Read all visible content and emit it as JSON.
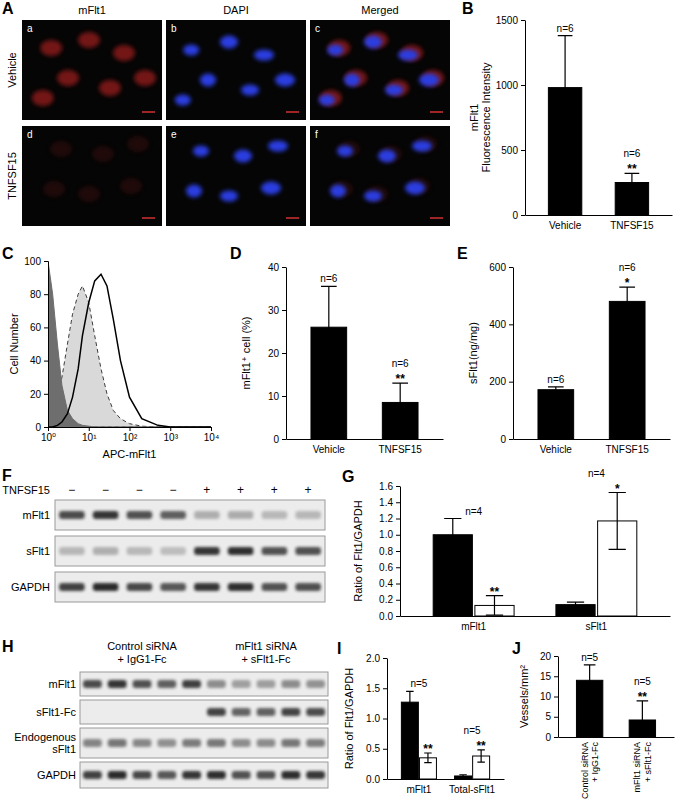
{
  "images": {
    "panel": "A",
    "columns": [
      "mFlt1",
      "DAPI",
      "Merged"
    ],
    "rows": [
      "Vehicle",
      "TNFSF15"
    ],
    "tiles": [
      "a",
      "b",
      "c",
      "d",
      "e",
      "f"
    ]
  },
  "blots": [
    {
      "panel": "F",
      "treatment": "TNFSF15",
      "lanes": [
        "−",
        "−",
        "−",
        "−",
        "+",
        "+",
        "+",
        "+"
      ],
      "rows": [
        "mFlt1",
        "sFlt1",
        "GAPDH"
      ]
    },
    {
      "panel": "H",
      "groups": [
        "Control siRNA\n+ IgG1-Fc",
        "mFlt1 siRNA\n+ sFlt1-Fc"
      ],
      "rows": [
        "mFlt1",
        "sFlt1-Fc",
        "Endogenous\nsFlt1",
        "GAPDH"
      ]
    }
  ],
  "chart_data": [
    {
      "panel": "B",
      "type": "bar",
      "y_label": "mFlt1\nFluorescence Intensity",
      "categories": [
        "Vehicle",
        "TNFSF15"
      ],
      "values": [
        980,
        250
      ],
      "errors": [
        400,
        70
      ],
      "color": "#000000",
      "ylim": [
        0,
        1500
      ],
      "yticks": [
        0,
        500,
        1000,
        1500
      ],
      "group_labels": [
        "n=6",
        "n=6"
      ],
      "sig_labels": [
        null,
        "**"
      ]
    },
    {
      "panel": "C",
      "type": "line",
      "log": "x",
      "x_label": "APC-mFlt1",
      "y_label": "Cell Number",
      "x": [
        1,
        1.3,
        1.7,
        2.2,
        3,
        4,
        5.5,
        7,
        10,
        14,
        20,
        28,
        40,
        60,
        100,
        200,
        500,
        1000,
        10000
      ],
      "xlim": [
        1,
        10000
      ],
      "xticks": [
        {
          "value": 1,
          "label": "10⁰"
        },
        {
          "value": 10,
          "label": "10¹"
        },
        {
          "value": 100,
          "label": "10²"
        },
        {
          "value": 1000,
          "label": "10³"
        },
        {
          "value": 10000,
          "label": "10⁴"
        }
      ],
      "ylim": [
        0,
        100
      ],
      "yticks": [
        0,
        20,
        40,
        60,
        80,
        100
      ],
      "series": [
        {
          "type": "area",
          "color": "#d9d9d9",
          "line_style": "dashed",
          "values": [
            5,
            10,
            18,
            30,
            50,
            68,
            80,
            85,
            75,
            55,
            35,
            20,
            10,
            5,
            2,
            0.5,
            0,
            0,
            0
          ]
        },
        {
          "type": "area",
          "color": "#6e6e6e",
          "line_style": "solid",
          "values": [
            100,
            80,
            50,
            25,
            10,
            5,
            2,
            1,
            0.5,
            0,
            0,
            0,
            0,
            0,
            0,
            0,
            0,
            0,
            0
          ]
        },
        {
          "type": "line",
          "color": "#000000",
          "line_style": "solid",
          "values": [
            0,
            0,
            1,
            3,
            8,
            18,
            35,
            55,
            75,
            88,
            92,
            85,
            65,
            40,
            18,
            5,
            1,
            0,
            0
          ]
        }
      ]
    },
    {
      "panel": "D",
      "type": "bar",
      "y_label": "mFlt1⁺ cell (%)",
      "categories": [
        "Vehicle",
        "TNFSF15"
      ],
      "values": [
        26,
        8.5
      ],
      "errors": [
        9.5,
        4.5
      ],
      "color": "#000000",
      "ylim": [
        0,
        40
      ],
      "yticks": [
        0,
        10,
        20,
        30,
        40
      ],
      "group_labels": [
        "n=6",
        "n=6"
      ],
      "sig_labels": [
        null,
        "**"
      ]
    },
    {
      "panel": "E",
      "type": "bar",
      "y_label": "sFlt1(ng/mg)",
      "categories": [
        "Vehicle",
        "TNFSF15"
      ],
      "values": [
        172,
        480
      ],
      "errors": [
        10,
        50
      ],
      "color": "#000000",
      "ylim": [
        0,
        600
      ],
      "yticks": [
        0,
        200,
        400,
        600
      ],
      "group_labels": [
        "n=6",
        "n=6"
      ],
      "sig_labels": [
        null,
        "*"
      ]
    },
    {
      "panel": "G",
      "type": "bar",
      "y_label": "Ratio of Flt1/GAPDH",
      "categories": [
        "mFlt1",
        "sFlt1"
      ],
      "ylim": [
        0,
        1.6
      ],
      "yticks": [
        {
          "value": 0,
          "label": "0.0"
        },
        0.2,
        0.4,
        0.6,
        0.8,
        {
          "value": 1,
          "label": "1.0"
        },
        1.2,
        1.4,
        1.6
      ],
      "group_labels": [
        "n=4",
        "n=4"
      ],
      "series": [
        {
          "color": "#000000",
          "values": [
            1.0,
            0.14
          ],
          "errors": [
            0.2,
            0.03
          ]
        },
        {
          "color": "#ffffff",
          "values": [
            0.13,
            1.17
          ],
          "errors": [
            0.12,
            0.35
          ],
          "sig_labels": [
            "**",
            "*"
          ]
        }
      ]
    },
    {
      "panel": "I",
      "type": "bar",
      "y_label": "Ratio of Flt1/GAPDH",
      "categories": [
        "mFlt1",
        "Total-sFlt1"
      ],
      "ylim": [
        0,
        2
      ],
      "yticks": [
        {
          "value": 0,
          "label": "0.0"
        },
        0.5,
        {
          "value": 1,
          "label": "1.0"
        },
        1.5,
        {
          "value": 2,
          "label": "2.0"
        }
      ],
      "group_labels": [
        "n=5",
        "n=5"
      ],
      "series": [
        {
          "color": "#000000",
          "values": [
            1.27,
            0.05
          ],
          "errors": [
            0.18,
            0.02
          ]
        },
        {
          "color": "#ffffff",
          "values": [
            0.35,
            0.38
          ],
          "errors": [
            0.08,
            0.1
          ],
          "sig_labels": [
            "**",
            "**"
          ]
        }
      ]
    },
    {
      "panel": "J",
      "type": "bar",
      "y_label": "Vessels/mm²",
      "categories": [
        "Control siRNA\n+ IgG1-Fc",
        "mFlt1 siRNA\n+ sFlt1-Fc"
      ],
      "values": [
        14,
        4.2
      ],
      "errors": [
        3.8,
        4.7
      ],
      "color": "#000000",
      "ylim": [
        0,
        20
      ],
      "yticks": [
        0,
        5,
        10,
        15,
        20
      ],
      "group_labels": [
        "n=5",
        "n=5"
      ],
      "sig_labels": [
        null,
        "**"
      ]
    }
  ]
}
